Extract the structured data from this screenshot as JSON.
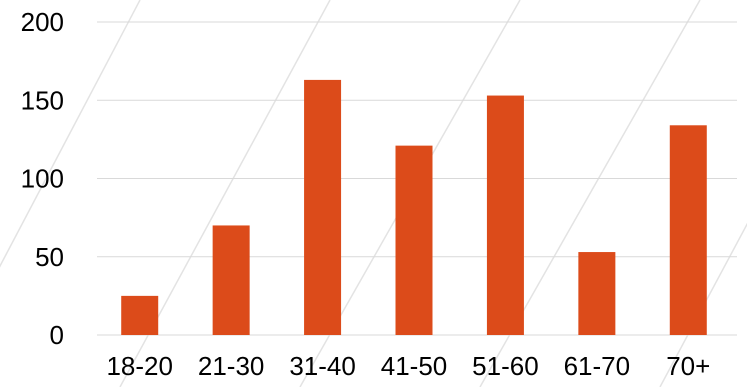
{
  "chart_data": {
    "type": "bar",
    "title": "",
    "xlabel": "",
    "ylabel": "",
    "categories": [
      "18-20",
      "21-30",
      "31-40",
      "41-50",
      "51-60",
      "61-70",
      "70+"
    ],
    "values": [
      25,
      70,
      163,
      121,
      153,
      53,
      134
    ],
    "ylim": [
      0,
      200
    ],
    "yticks": [
      "0",
      "50",
      "100",
      "150",
      "200"
    ],
    "grid": true,
    "legend": "none",
    "colors": {
      "bar": "#dc4b1a",
      "grid": "#d9d9d9",
      "text": "#000000"
    }
  }
}
